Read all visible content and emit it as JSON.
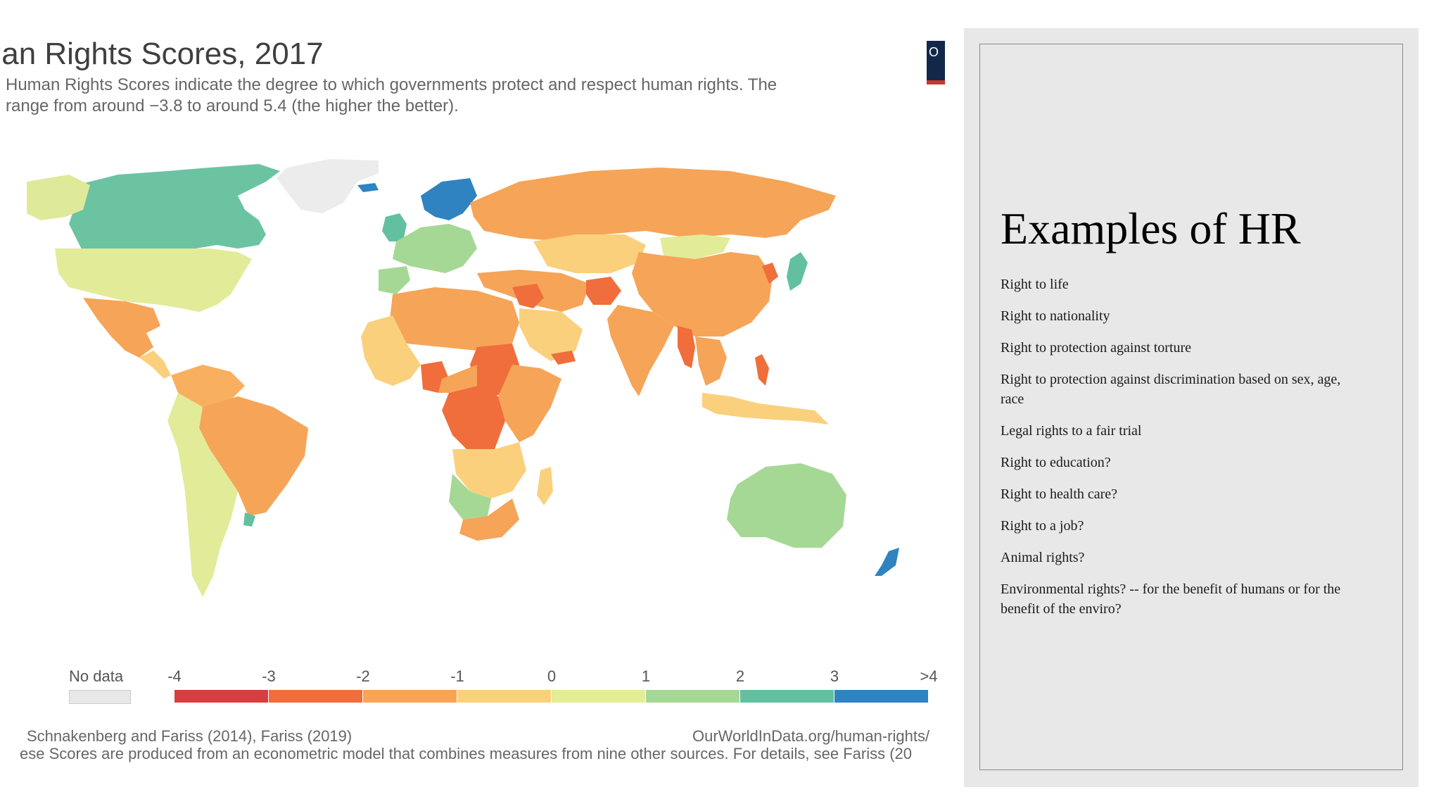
{
  "map": {
    "title": "ıan Rights Scores, 2017",
    "subtitle": "Human Rights Scores indicate the degree to which governments protect and respect human rights. The\nrange from around −3.8 to around 5.4 (the higher the better).",
    "logo_text": "O",
    "source": "Schnakenberg and Fariss (2014), Fariss (2019)",
    "source_url": "OurWorldInData.org/human-rights/",
    "note": "ese Scores are produced from an econometric model that combines measures from nine other sources. For details, see Fariss (20",
    "legend": {
      "no_data_label": "No data",
      "no_data_color": "#e8e8e8",
      "ticks": [
        "-4",
        "-3",
        "-2",
        "-1",
        "0",
        "1",
        "2",
        "3",
        ">4"
      ],
      "colors": [
        "#d73f3f",
        "#ef6e3c",
        "#f7a455",
        "#fbd07d",
        "#e4ec96",
        "#a6d895",
        "#62c0a0",
        "#2f83c0"
      ]
    }
  },
  "panel": {
    "heading": "Examples of  HR",
    "items": [
      "Right to life",
      "Right to nationality",
      "Right to protection against torture",
      "Right to protection against discrimination based on sex, age, race",
      "Legal rights to a fair trial",
      "Right to education?",
      "Right to health care?",
      "Right to a job?",
      "Animal rights?",
      "Environmental rights?  -- for the benefit of humans or for the benefit of the enviro?"
    ]
  }
}
